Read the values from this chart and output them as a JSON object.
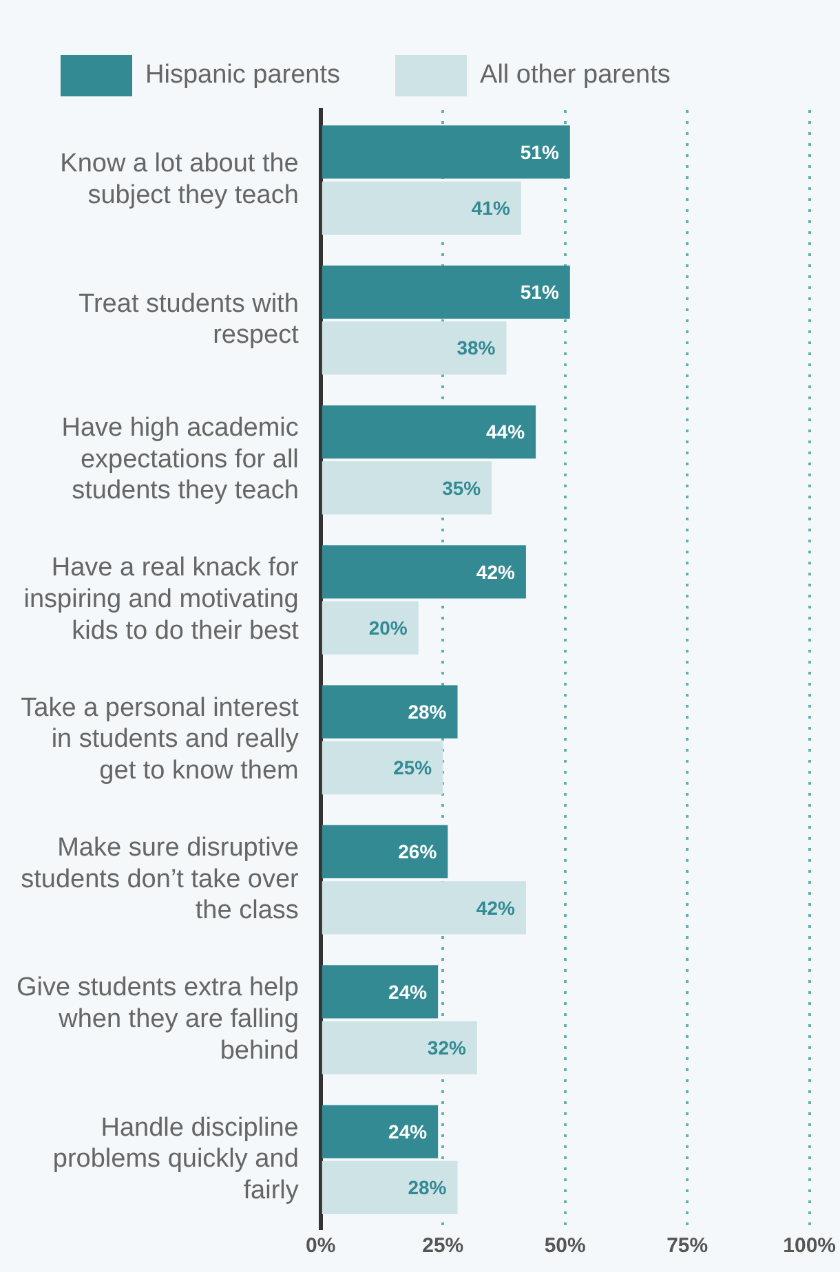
{
  "chart_data": {
    "type": "bar",
    "orientation": "horizontal",
    "categories": [
      "Know a lot about the subject they teach",
      "Treat students with respect",
      "Have high academic expectations for all students they teach",
      "Have a real knack for inspiring and motivating kids to do their best",
      "Take a personal interest in students and really get to know them",
      "Make sure disruptive students don’t take over the class",
      "Give students extra help when they are falling behind",
      "Handle discipline problems quickly and fairly"
    ],
    "series": [
      {
        "name": "Hispanic parents",
        "color": "#338a93",
        "values": [
          51,
          51,
          44,
          42,
          28,
          26,
          24,
          24
        ],
        "value_labels": [
          "51%",
          "51%",
          "44%",
          "42%",
          "28%",
          "26%",
          "24%",
          "24%"
        ]
      },
      {
        "name": "All other parents",
        "color": "#cde3e6",
        "values": [
          41,
          38,
          35,
          20,
          25,
          42,
          32,
          28
        ],
        "value_labels": [
          "41%",
          "38%",
          "35%",
          "20%",
          "25%",
          "42%",
          "32%",
          "28%"
        ]
      }
    ],
    "xlim": [
      0,
      100
    ],
    "xticks": [
      {
        "value": 0,
        "label": "0%"
      },
      {
        "value": 25,
        "label": "25%"
      },
      {
        "value": 50,
        "label": "50%"
      },
      {
        "value": 75,
        "label": "75%"
      },
      {
        "value": 100,
        "label": "100%"
      }
    ],
    "grid": "x",
    "legend": "top left"
  }
}
